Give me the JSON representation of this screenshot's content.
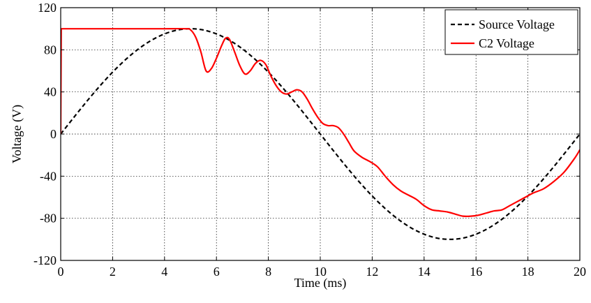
{
  "chart_data": {
    "type": "line",
    "title": "",
    "xlabel": "Time (ms)",
    "ylabel": "Voltage (V)",
    "xlim": [
      0,
      20
    ],
    "ylim": [
      -120,
      120
    ],
    "xticks": [
      0,
      2,
      4,
      6,
      8,
      10,
      12,
      14,
      16,
      18,
      20
    ],
    "yticks": [
      -120,
      -80,
      -40,
      0,
      40,
      80,
      120
    ],
    "grid": true,
    "legend_position": "top-right",
    "series": [
      {
        "name": "Source Voltage",
        "color": "#000000",
        "style": "dashed",
        "function": "100*sin(2*pi*t/20)",
        "x": [
          0,
          0.5,
          1,
          1.5,
          2,
          2.5,
          3,
          3.5,
          4,
          4.5,
          5,
          5.5,
          6,
          6.5,
          7,
          7.5,
          8,
          8.5,
          9,
          9.5,
          10,
          10.5,
          11,
          11.5,
          12,
          12.5,
          13,
          13.5,
          14,
          14.5,
          15,
          15.5,
          16,
          16.5,
          17,
          17.5,
          18,
          18.5,
          19,
          19.5,
          20
        ],
        "y": [
          0,
          15.6,
          30.9,
          45.4,
          58.8,
          70.7,
          80.9,
          89.1,
          95.1,
          98.8,
          100,
          98.8,
          95.1,
          89.1,
          80.9,
          70.7,
          58.8,
          45.4,
          30.9,
          15.6,
          0,
          -15.6,
          -30.9,
          -45.4,
          -58.8,
          -70.7,
          -80.9,
          -89.1,
          -95.1,
          -98.8,
          -100,
          -98.8,
          -95.1,
          -89.1,
          -80.9,
          -70.7,
          -58.8,
          -45.4,
          -30.9,
          -15.6,
          0
        ]
      },
      {
        "name": "C2 Voltage",
        "color": "#ff0000",
        "style": "solid",
        "x": [
          0,
          0.02,
          1,
          2,
          3,
          4,
          4.8,
          5.0,
          5.2,
          5.4,
          5.6,
          5.8,
          6.0,
          6.2,
          6.35,
          6.5,
          6.7,
          6.9,
          7.1,
          7.3,
          7.5,
          7.7,
          7.9,
          8.1,
          8.3,
          8.5,
          8.7,
          8.9,
          9.1,
          9.3,
          9.5,
          9.7,
          9.9,
          10.1,
          10.3,
          10.5,
          10.7,
          10.9,
          11.1,
          11.3,
          11.6,
          11.9,
          12.2,
          12.5,
          12.8,
          13.1,
          13.4,
          13.7,
          14.0,
          14.3,
          14.6,
          14.9,
          15.2,
          15.5,
          15.8,
          16.1,
          16.4,
          16.7,
          17.0,
          17.3,
          17.6,
          17.9,
          18.2,
          18.6,
          19.0,
          19.4,
          19.8,
          20.0
        ],
        "y": [
          0,
          100,
          100,
          100,
          100,
          100,
          100,
          99,
          92,
          78,
          60,
          62,
          72,
          84,
          91,
          90,
          78,
          65,
          57,
          60,
          67,
          70,
          66,
          55,
          46,
          40,
          38,
          40,
          42,
          40,
          33,
          24,
          16,
          10,
          8,
          8,
          6,
          0,
          -8,
          -16,
          -22,
          -26,
          -31,
          -40,
          -48,
          -54,
          -58,
          -62,
          -68,
          -72,
          -73,
          -74,
          -76,
          -78,
          -78,
          -77,
          -75,
          -73,
          -72,
          -68,
          -64,
          -60,
          -56,
          -52,
          -45,
          -36,
          -23,
          -15
        ]
      }
    ]
  }
}
